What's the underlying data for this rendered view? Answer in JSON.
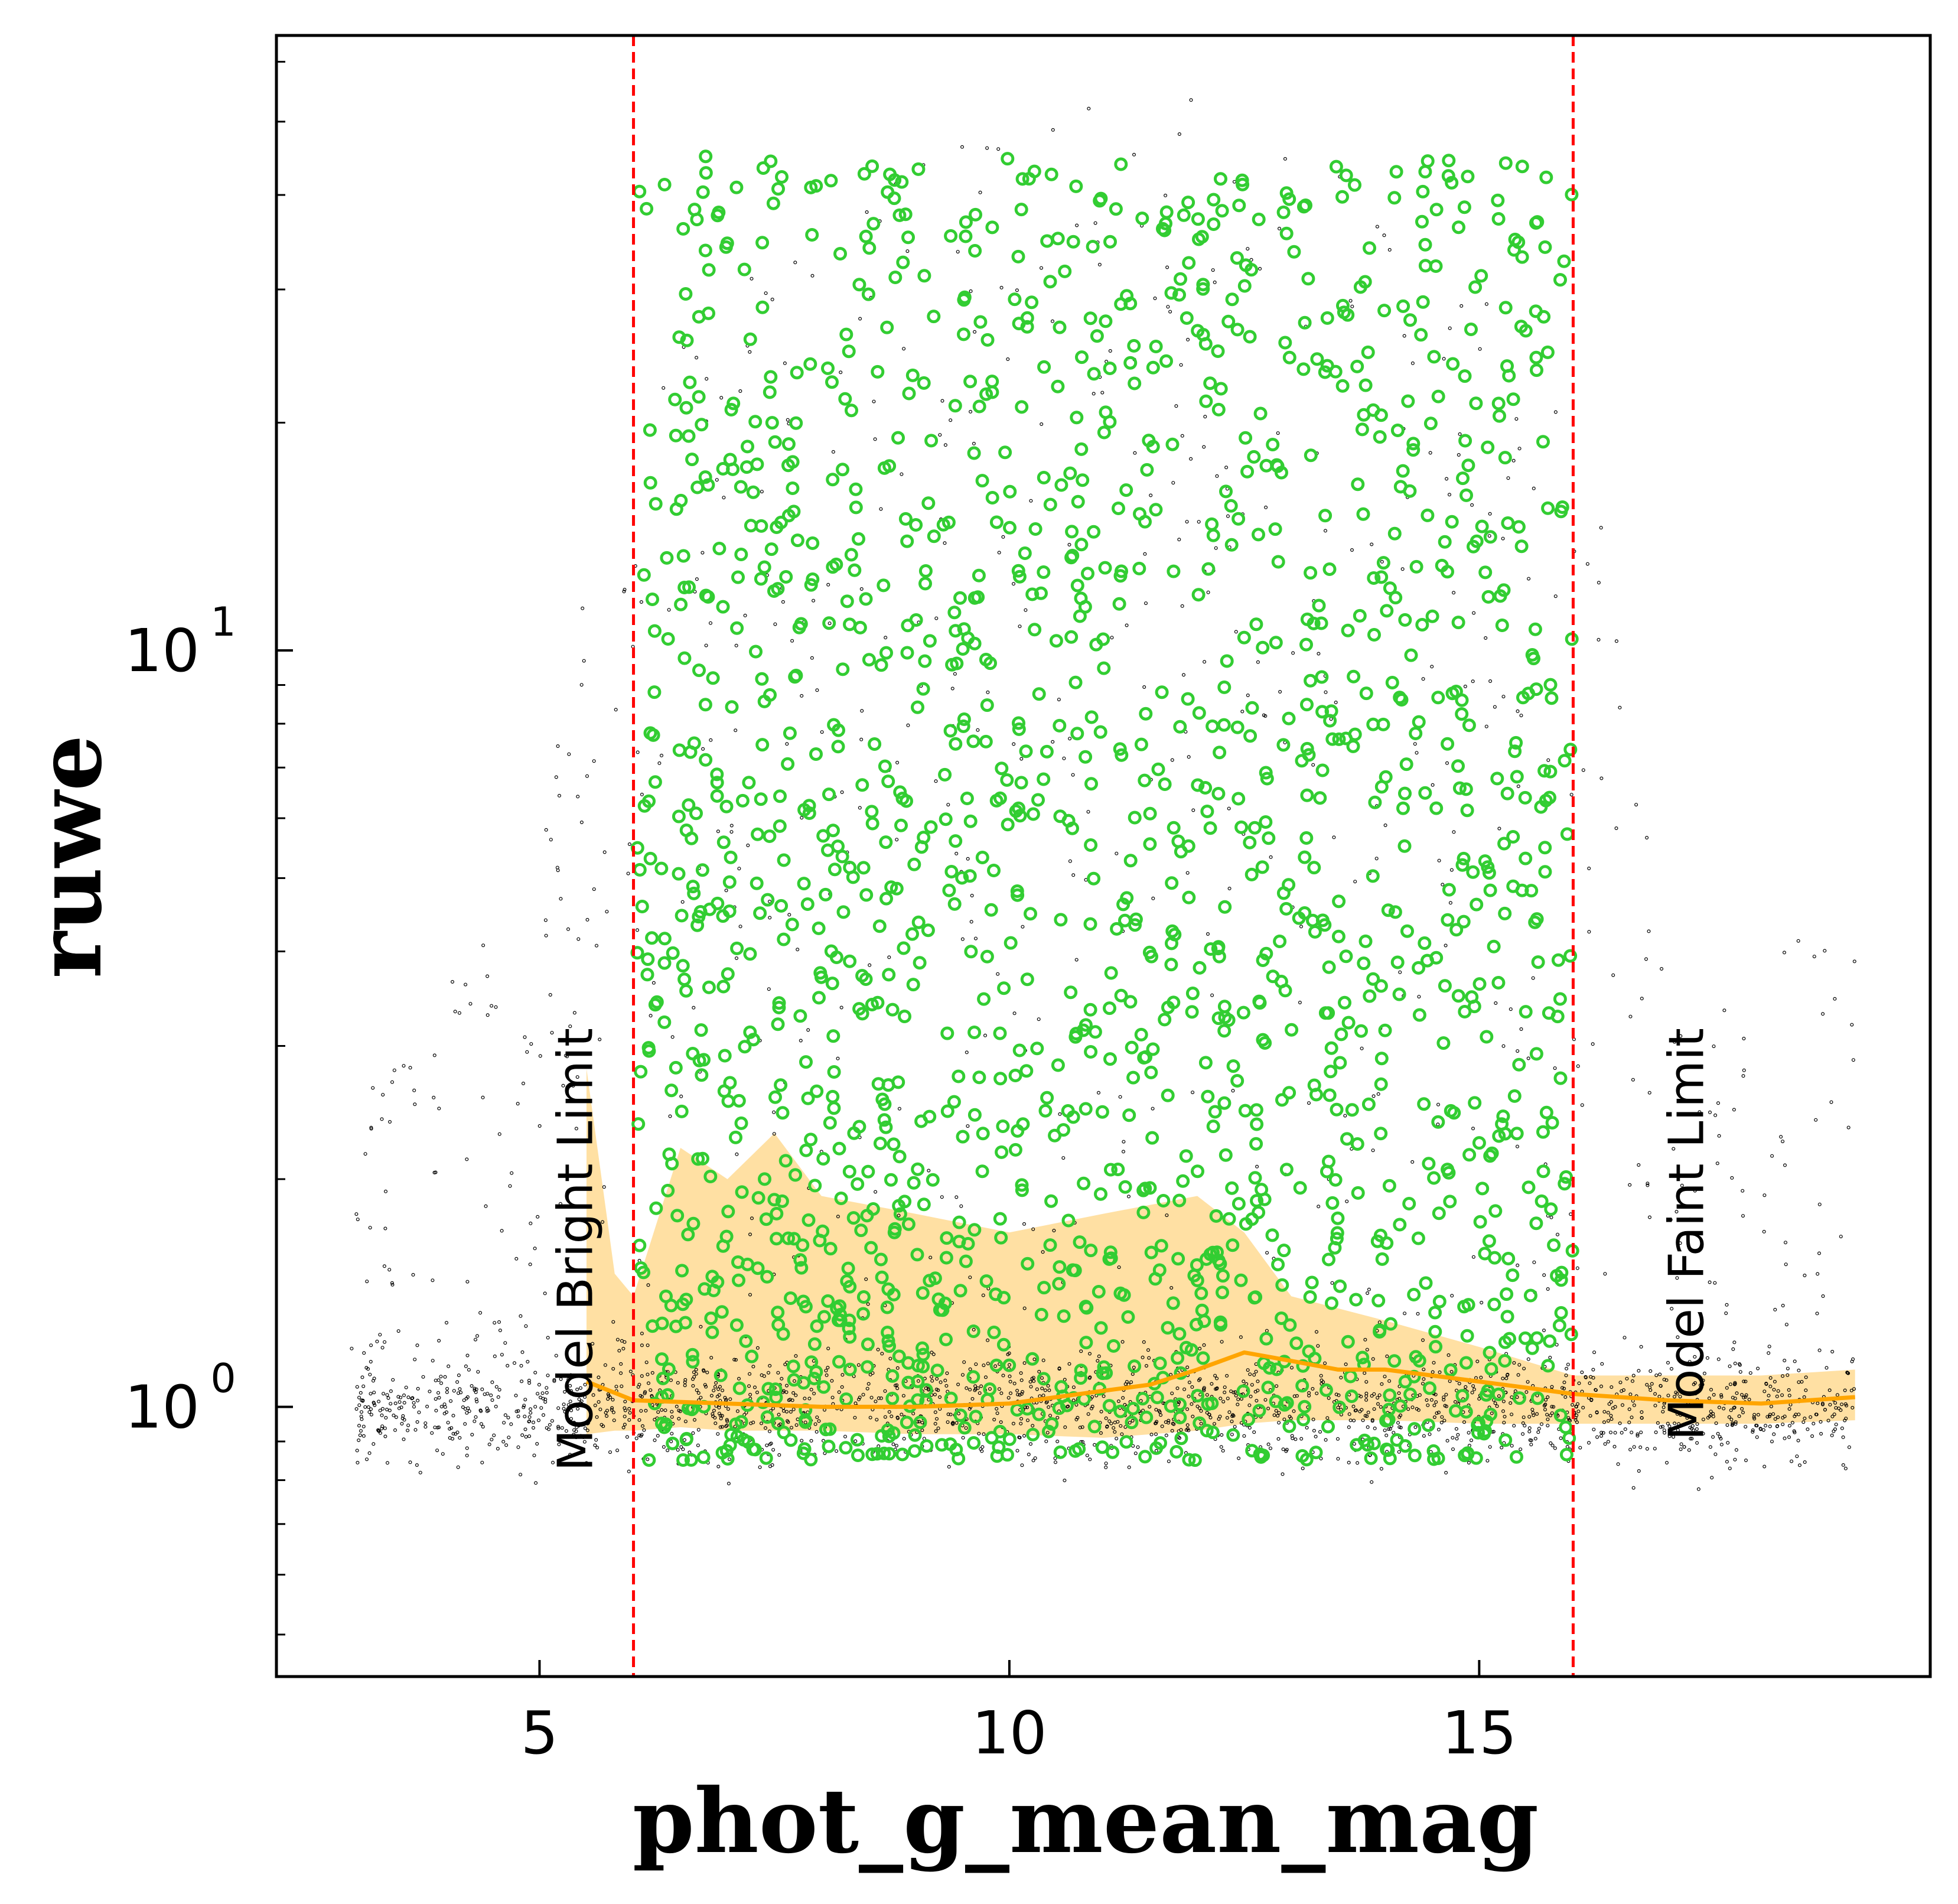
{
  "chart_data": {
    "type": "scatter",
    "title": "",
    "xlabel": "phot_g_mean_mag",
    "ylabel": "ruwe",
    "xlim": [
      2.2,
      19.8
    ],
    "ylim": [
      0.44,
      65.0
    ],
    "yscale": "log",
    "grid": false,
    "x_ticks": [
      5,
      10,
      15
    ],
    "x_tick_labels": [
      "5",
      "10",
      "15"
    ],
    "y_ticks": [
      1,
      10
    ],
    "y_tick_labels": [
      "10^0",
      "10^1"
    ],
    "vlines": [
      {
        "x": 6.0,
        "label": "Model Bright Limit",
        "color": "#ff0000",
        "style": "dashed"
      },
      {
        "x": 16.0,
        "label": "Model Faint Limit",
        "color": "#ff0000",
        "style": "dashed"
      }
    ],
    "series": [
      {
        "kind": "background-points",
        "color": "#000000",
        "x_range": [
          3.0,
          19.0
        ],
        "core_ruwe": 1.0,
        "upper_envelope": [
          [
            3.5,
            3.0
          ],
          [
            5,
            5.0
          ],
          [
            6,
            20
          ],
          [
            8,
            40
          ],
          [
            10,
            50
          ],
          [
            12,
            55
          ],
          [
            14,
            40
          ],
          [
            16,
            20
          ],
          [
            17,
            3
          ],
          [
            19,
            5
          ]
        ]
      },
      {
        "kind": "flagged-points",
        "color": "#32cd32",
        "x_range": [
          6.0,
          16.0
        ],
        "ruwe_range": [
          0.85,
          45.0
        ]
      },
      {
        "kind": "running-median",
        "color": "#ffa500",
        "x": [
          5.5,
          6.0,
          7.0,
          8.0,
          9.0,
          10.0,
          10.5,
          11.0,
          11.5,
          12.0,
          12.5,
          13.0,
          13.5,
          14.0,
          14.5,
          15.0,
          15.5,
          16.0,
          17.0,
          18.0,
          19.0
        ],
        "y": [
          1.08,
          1.02,
          1.01,
          1.0,
          1.0,
          1.01,
          1.03,
          1.05,
          1.07,
          1.12,
          1.18,
          1.15,
          1.12,
          1.12,
          1.1,
          1.08,
          1.06,
          1.04,
          1.02,
          1.01,
          1.03
        ]
      },
      {
        "kind": "percentile-band",
        "color": "#ffcc66",
        "x": [
          5.5,
          5.8,
          6.0,
          6.5,
          7.0,
          7.5,
          8.0,
          9.0,
          10.0,
          11.0,
          12.0,
          12.5,
          13.0,
          14.0,
          15.0,
          16.0,
          17.0,
          18.0,
          19.0
        ],
        "upper": [
          2.8,
          1.5,
          1.4,
          2.2,
          2.0,
          2.3,
          1.9,
          1.8,
          1.7,
          1.8,
          1.9,
          1.7,
          1.4,
          1.3,
          1.2,
          1.1,
          1.1,
          1.1,
          1.12
        ],
        "lower": [
          0.92,
          0.93,
          0.93,
          0.94,
          0.93,
          0.93,
          0.93,
          0.92,
          0.92,
          0.91,
          0.93,
          0.95,
          0.96,
          0.96,
          0.95,
          0.95,
          0.95,
          0.95,
          0.96
        ]
      }
    ]
  }
}
